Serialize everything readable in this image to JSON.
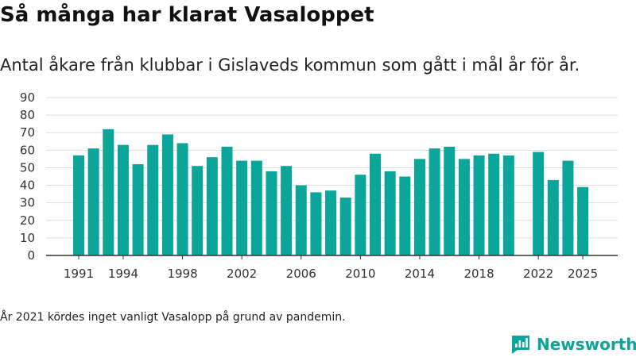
{
  "header": {
    "title": "Så många har klarat Vasaloppet",
    "subtitle": "Antal åkare från klubbar i Gislaveds kommun som gått i mål år för år."
  },
  "footnote": "År 2021 kördes inget vanligt Vasalopp på grund av pandemin.",
  "brand": {
    "name": "Newsworthy",
    "icon": "newsworthy-logo-icon"
  },
  "colors": {
    "bar": "#0ba59a",
    "grid": "#dddddd",
    "axis": "#333333",
    "brand": "#0ba59a"
  },
  "chart_data": {
    "type": "bar",
    "title": "Så många har klarat Vasaloppet",
    "x": [
      1991,
      1992,
      1993,
      1994,
      1995,
      1996,
      1997,
      1998,
      1999,
      2000,
      2001,
      2002,
      2003,
      2004,
      2005,
      2006,
      2007,
      2008,
      2009,
      2010,
      2011,
      2012,
      2013,
      2014,
      2015,
      2016,
      2017,
      2018,
      2019,
      2020,
      2021,
      2022,
      2023,
      2024,
      2025
    ],
    "values": [
      57,
      61,
      72,
      63,
      52,
      63,
      69,
      64,
      51,
      56,
      62,
      54,
      54,
      48,
      51,
      40,
      36,
      37,
      33,
      46,
      58,
      48,
      45,
      55,
      61,
      62,
      55,
      57,
      58,
      57,
      null,
      59,
      43,
      54,
      39
    ],
    "ylim": [
      0,
      90
    ],
    "yticks": [
      0,
      10,
      20,
      30,
      40,
      50,
      60,
      70,
      80,
      90
    ],
    "xticks": [
      1991,
      1994,
      1998,
      2002,
      2006,
      2010,
      2014,
      2018,
      2022,
      2025
    ],
    "grid": true,
    "legend": "none"
  }
}
